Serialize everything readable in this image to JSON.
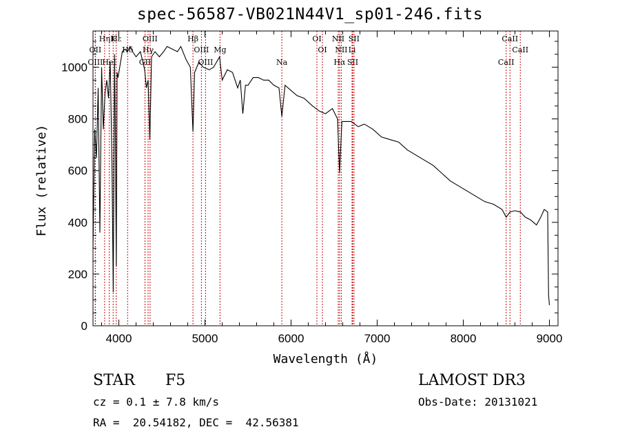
{
  "chart_data": {
    "type": "line",
    "title": "spec-56587-VB021N44V1_sp01-246.fits",
    "xlabel": "Wavelength (Å)",
    "ylabel": "Flux (relative)",
    "xlim": [
      3700,
      9100
    ],
    "ylim": [
      0,
      1140
    ],
    "xticks": [
      4000,
      5000,
      6000,
      7000,
      8000,
      9000
    ],
    "yticks": [
      0,
      200,
      400,
      600,
      800,
      1000
    ],
    "series": [
      {
        "name": "flux",
        "x": [
          3700,
          3720,
          3740,
          3760,
          3780,
          3800,
          3820,
          3840,
          3860,
          3880,
          3900,
          3920,
          3935,
          3950,
          3960,
          3970,
          3980,
          3990,
          4010,
          4040,
          4070,
          4100,
          4130,
          4160,
          4200,
          4250,
          4300,
          4320,
          4340,
          4360,
          4380,
          4420,
          4470,
          4520,
          4560,
          4620,
          4680,
          4720,
          4780,
          4830,
          4861,
          4880,
          4930,
          4980,
          5050,
          5100,
          5170,
          5200,
          5260,
          5320,
          5380,
          5410,
          5440,
          5470,
          5500,
          5560,
          5620,
          5680,
          5740,
          5800,
          5860,
          5893,
          5930,
          6000,
          6070,
          6150,
          6250,
          6330,
          6400,
          6480,
          6540,
          6563,
          6590,
          6640,
          6700,
          6780,
          6850,
          6950,
          7050,
          7150,
          7250,
          7350,
          7450,
          7550,
          7650,
          7750,
          7850,
          7950,
          8050,
          8150,
          8250,
          8350,
          8450,
          8498,
          8542,
          8600,
          8662,
          8720,
          8780,
          8850,
          8900,
          8940,
          8980,
          8990,
          9000
        ],
        "y": [
          300,
          760,
          650,
          920,
          360,
          1000,
          760,
          900,
          950,
          880,
          1020,
          640,
          130,
          1050,
          740,
          230,
          980,
          960,
          1000,
          1060,
          1070,
          1060,
          1080,
          1060,
          1040,
          1060,
          990,
          920,
          950,
          720,
          1040,
          1060,
          1040,
          1060,
          1080,
          1070,
          1060,
          1080,
          1030,
          1000,
          750,
          980,
          1020,
          1000,
          990,
          1000,
          1040,
          950,
          990,
          980,
          920,
          950,
          820,
          930,
          930,
          960,
          960,
          950,
          950,
          930,
          920,
          810,
          930,
          910,
          890,
          880,
          850,
          830,
          820,
          840,
          800,
          590,
          790,
          790,
          790,
          770,
          780,
          760,
          730,
          720,
          710,
          680,
          660,
          640,
          620,
          590,
          560,
          540,
          520,
          500,
          480,
          470,
          450,
          420,
          440,
          445,
          440,
          420,
          410,
          390,
          420,
          450,
          440,
          120,
          80
        ]
      }
    ],
    "lines": [
      {
        "label": "Hε",
        "x": 3970
      },
      {
        "label": "OII",
        "x": 3727
      },
      {
        "label": "OIII",
        "x": 3727
      },
      {
        "label": "K",
        "x": 3934
      },
      {
        "label": "Hδ",
        "x": 4102
      },
      {
        "label": "HeI",
        "x": 3889
      },
      {
        "label": "Hη",
        "x": 3835
      },
      {
        "label": "Hγ",
        "x": 4340
      },
      {
        "label": "GII",
        "x": 4304
      },
      {
        "label": "OIII",
        "x": 4363
      },
      {
        "label": "OIII",
        "x": 4959
      },
      {
        "label": "OIII",
        "x": 5007
      },
      {
        "label": "Hβ",
        "x": 4861
      },
      {
        "label": "Mg",
        "x": 5175
      },
      {
        "label": "Na",
        "x": 5893
      },
      {
        "label": "OI",
        "x": 6300
      },
      {
        "label": "OI",
        "x": 6364
      },
      {
        "label": "Hα",
        "x": 6563
      },
      {
        "label": "NII",
        "x": 6548
      },
      {
        "label": "NII",
        "x": 6583
      },
      {
        "label": "SII",
        "x": 6716
      },
      {
        "label": "SII",
        "x": 6731
      },
      {
        "label": "Li",
        "x": 6708
      },
      {
        "label": "CaII",
        "x": 8498
      },
      {
        "label": "CaII",
        "x": 8542
      },
      {
        "label": "CaII",
        "x": 8662
      }
    ]
  },
  "info": {
    "class": "STAR",
    "subclass": "F5",
    "survey": "LAMOST DR3",
    "cz": "cz = 0.1 ± 7.8 km/s",
    "obs_date": "Obs-Date: 20131021",
    "coords": "RA =  20.54182, DEC =  42.56381"
  },
  "colors": {
    "lines": "#cc0000",
    "spectrum": "#000000",
    "frame": "#000000"
  }
}
